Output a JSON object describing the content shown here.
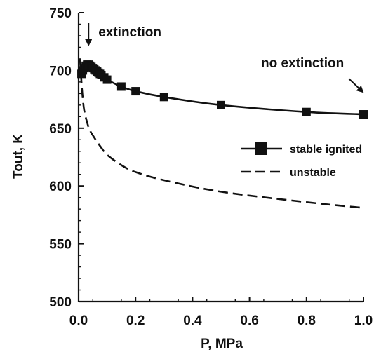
{
  "chart_data": {
    "type": "line",
    "xlabel": "P, MPa",
    "ylabel": "Tout, K",
    "xlim": [
      0.0,
      1.0
    ],
    "ylim": [
      500,
      750
    ],
    "x_ticks": [
      "0.0",
      "0.2",
      "0.4",
      "0.6",
      "0.8",
      "1.0"
    ],
    "y_ticks": [
      "500",
      "550",
      "600",
      "650",
      "700",
      "750"
    ],
    "grid": false,
    "legend_position": "right-middle",
    "series": [
      {
        "name": "stable ignited",
        "style": "solid-square-markers",
        "color": "#111111",
        "x": [
          0.01,
          0.015,
          0.02,
          0.025,
          0.03,
          0.035,
          0.04,
          0.045,
          0.05,
          0.055,
          0.06,
          0.065,
          0.07,
          0.075,
          0.08,
          0.09,
          0.1,
          0.15,
          0.2,
          0.3,
          0.5,
          0.8,
          1.0
        ],
        "values": [
          697,
          700,
          702,
          704,
          705,
          705,
          704,
          703,
          702,
          701,
          700,
          699,
          698,
          697,
          696,
          694,
          692,
          686,
          682,
          677,
          670,
          664,
          662
        ]
      },
      {
        "name": "unstable",
        "style": "dashed",
        "color": "#111111",
        "x": [
          0.005,
          0.01,
          0.015,
          0.02,
          0.03,
          0.04,
          0.06,
          0.08,
          0.1,
          0.15,
          0.2,
          0.3,
          0.5,
          0.8,
          1.0
        ],
        "values": [
          710,
          690,
          675,
          665,
          655,
          648,
          640,
          633,
          627,
          618,
          612,
          605,
          595,
          586,
          581
        ]
      }
    ],
    "annotations": [
      {
        "text": "extinction",
        "arrow": "down",
        "x": 0.035,
        "y": 712
      },
      {
        "text": "no extinction",
        "arrow": "down-right",
        "x": 1.0,
        "y": 680
      }
    ]
  }
}
